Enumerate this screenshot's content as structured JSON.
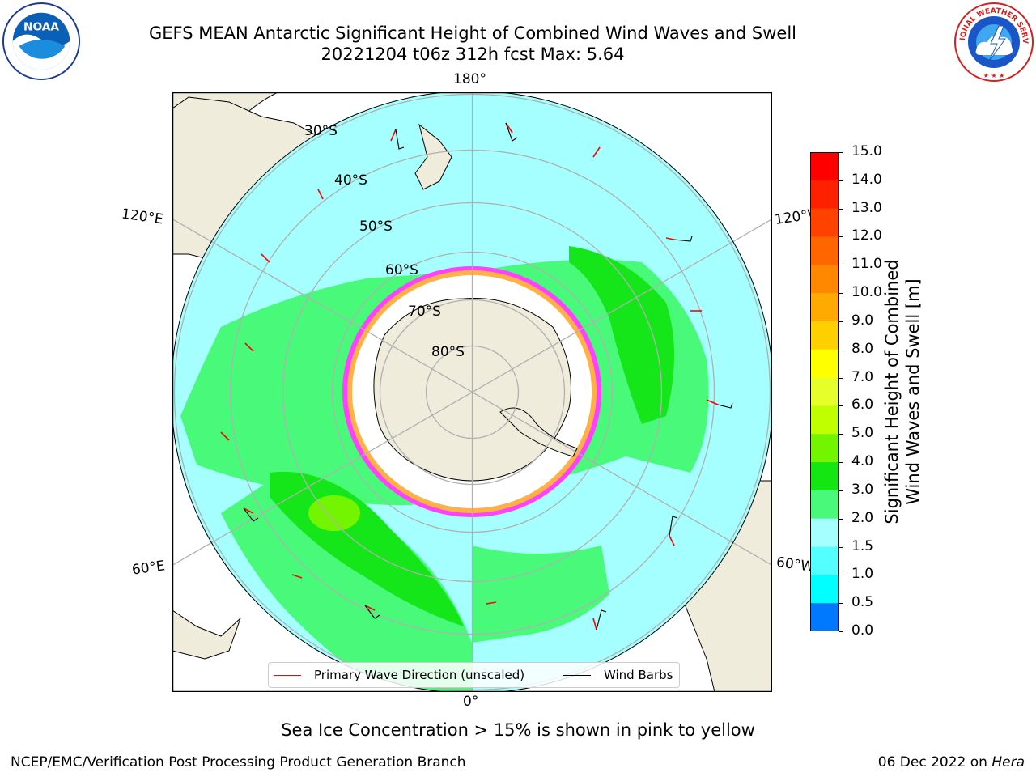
{
  "header": {
    "title_line1": "GEFS MEAN Antarctic Significant Height of Combined Wind Waves and Swell",
    "title_line2": "20221204 t06z 312h fcst   Max: 5.64"
  },
  "logos": {
    "left": {
      "icon": "noaa-logo-icon",
      "text": "NOAA"
    },
    "right": {
      "icon": "nws-logo-icon",
      "text": "NATIONAL WEATHER SERVICE"
    }
  },
  "map": {
    "projection": "south-polar-stereographic",
    "longitude_labels": {
      "top": "180°",
      "bottom": "0°",
      "upper_left": "120°E",
      "upper_right": "120°W",
      "lower_left": "60°E",
      "lower_right": "60°W"
    },
    "latitude_labels": [
      "30°S",
      "40°S",
      "50°S",
      "60°S",
      "70°S",
      "80°S"
    ],
    "colors": {
      "land": "#efecdc",
      "ocean_low": "#a6ffff",
      "ocean_mid": "#53ffff",
      "ocean_3m": "#49fa7a",
      "ocean_4m": "#15e61a",
      "sea_ice_white": "#ffffff",
      "sea_ice_pink": "#ff40ff",
      "sea_ice_orange": "#ffb046",
      "wave_arrow": "#ff0000",
      "wind_barb": "#000000"
    }
  },
  "colorbar": {
    "label": "Significant Height of Combined\nWind Waves and Swell [m]",
    "ticks": [
      "15.0",
      "14.0",
      "13.0",
      "12.0",
      "11.0",
      "10.0",
      "9.0",
      "8.0",
      "7.0",
      "6.0",
      "5.0",
      "4.0",
      "3.0",
      "2.0",
      "1.5",
      "1.0",
      "0.5",
      "0.0"
    ],
    "colors": [
      "#ff0000",
      "#ff2000",
      "#ff4200",
      "#ff6600",
      "#ff8800",
      "#ffaa00",
      "#ffd000",
      "#ffff00",
      "#e6ff2a",
      "#c0ff00",
      "#73f500",
      "#14e614",
      "#49fa7a",
      "#a6ffff",
      "#53ffff",
      "#00ffff",
      "#0078ff",
      "#0000ff"
    ]
  },
  "legend": {
    "primary_wave_direction": "Primary Wave Direction (unscaled)",
    "wind_barbs": "Wind Barbs",
    "wave_color": "#ff0000",
    "barb_color": "#000000"
  },
  "notes": {
    "sea_ice": "Sea Ice Concentration > 15% is shown in pink to yellow"
  },
  "footer": {
    "left": "NCEP/EMC/Verification Post Processing Product Generation Branch",
    "right_date": "06 Dec 2022 on ",
    "right_host": "Hera"
  }
}
